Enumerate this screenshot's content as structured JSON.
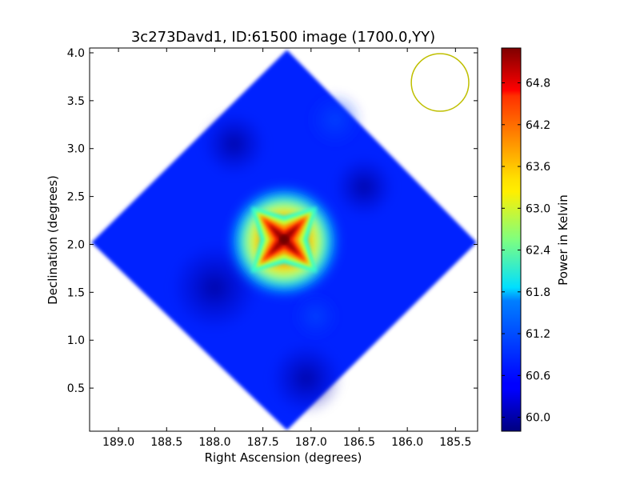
{
  "chart_data": {
    "type": "heatmap",
    "title": "3c273Davd1, ID:61500 image (1700.0,YY)",
    "xlabel": "Right Ascension (degrees)",
    "ylabel": "Declination (degrees)",
    "colorbar_label": "Power in Kelvin",
    "xlim": [
      189.3,
      185.27
    ],
    "ylim": [
      0.05,
      4.05
    ],
    "xticks": [
      189.0,
      188.5,
      188.0,
      187.5,
      187.0,
      186.5,
      186.0,
      185.5
    ],
    "xtick_labels": [
      "189.0",
      "188.5",
      "188.0",
      "187.5",
      "187.0",
      "186.5",
      "186.0",
      "185.5"
    ],
    "yticks": [
      0.5,
      1.0,
      1.5,
      2.0,
      2.5,
      3.0,
      3.5,
      4.0
    ],
    "ytick_labels": [
      "0.5",
      "1.0",
      "1.5",
      "2.0",
      "2.5",
      "3.0",
      "3.5",
      "4.0"
    ],
    "colorbar_range": [
      59.8,
      65.3
    ],
    "colorbar_ticks": [
      60.0,
      60.6,
      61.2,
      61.8,
      62.4,
      63.0,
      63.6,
      64.2,
      64.8
    ],
    "colorbar_tick_labels": [
      "60.0",
      "60.6",
      "61.2",
      "61.8",
      "62.4",
      "63.0",
      "63.6",
      "64.2",
      "64.8"
    ],
    "colormap": "jet",
    "source_peak": {
      "ra": 187.28,
      "dec": 2.05,
      "value": 65.2
    },
    "footprint_vertices": [
      {
        "ra": 187.25,
        "dec": 4.03
      },
      {
        "ra": 185.28,
        "dec": 2.02
      },
      {
        "ra": 187.25,
        "dec": 0.06
      },
      {
        "ra": 189.28,
        "dec": 2.02
      }
    ],
    "beam_circle": {
      "ra": 185.66,
      "dec": 3.69,
      "radius_deg": 0.3,
      "color": "#bfbf00"
    },
    "background_level": 60.3
  }
}
